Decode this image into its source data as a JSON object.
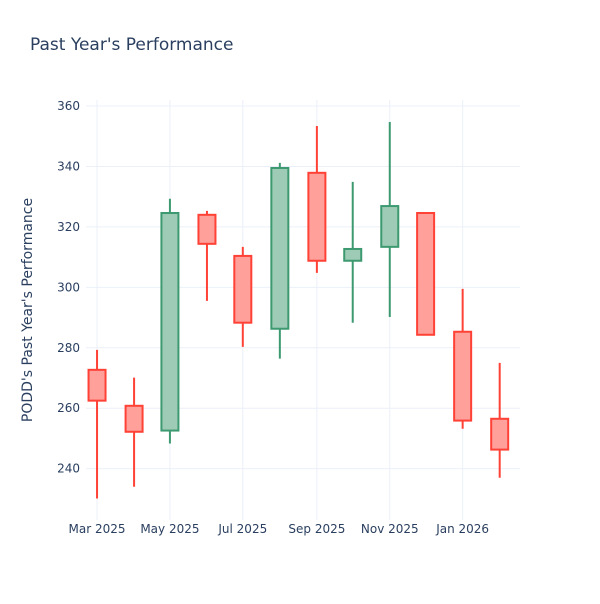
{
  "chart_data": {
    "type": "candlestick",
    "title": "Past Year's Performance",
    "xlabel": "",
    "ylabel": "PODD's Past Year's Performance",
    "ylim": [
      223,
      362
    ],
    "xlim": [
      "2025-01-29",
      "2026-02-18"
    ],
    "grid": true,
    "legend": "none",
    "y_ticks": [
      240,
      260,
      280,
      300,
      320,
      340,
      360
    ],
    "x_ticks": [
      {
        "date": "2025-03-01",
        "label": "Mar 2025"
      },
      {
        "date": "2025-05-01",
        "label": "May 2025"
      },
      {
        "date": "2025-07-01",
        "label": "Jul 2025"
      },
      {
        "date": "2025-09-01",
        "label": "Sep 2025"
      },
      {
        "date": "2025-11-01",
        "label": "Nov 2025"
      },
      {
        "date": "2026-01-01",
        "label": "Jan 2026"
      }
    ],
    "colors": {
      "increasing": "#3d9970",
      "increasing_fill": "#9ecbb5",
      "decreasing": "#ff4136",
      "decreasing_fill": "#ffa09b"
    },
    "candles": [
      {
        "date": "2025-03-01",
        "open": 272.7,
        "high": 279.3,
        "low": 230.1,
        "close": 262.5
      },
      {
        "date": "2025-04-01",
        "open": 260.8,
        "high": 270.1,
        "low": 234.0,
        "close": 252.2
      },
      {
        "date": "2025-05-01",
        "open": 252.6,
        "high": 329.3,
        "low": 248.3,
        "close": 324.6
      },
      {
        "date": "2025-06-01",
        "open": 324.0,
        "high": 325.3,
        "low": 295.5,
        "close": 314.4
      },
      {
        "date": "2025-07-01",
        "open": 310.4,
        "high": 313.4,
        "low": 280.3,
        "close": 288.3
      },
      {
        "date": "2025-08-01",
        "open": 286.3,
        "high": 341.2,
        "low": 276.4,
        "close": 339.5
      },
      {
        "date": "2025-09-01",
        "open": 337.9,
        "high": 353.4,
        "low": 304.8,
        "close": 308.8
      },
      {
        "date": "2025-10-01",
        "open": 308.8,
        "high": 334.9,
        "low": 288.3,
        "close": 312.7
      },
      {
        "date": "2025-11-01",
        "open": 313.4,
        "high": 354.7,
        "low": 290.2,
        "close": 326.9
      },
      {
        "date": "2025-12-01",
        "open": 324.6,
        "high": 324.6,
        "low": 284.3,
        "close": 284.3
      },
      {
        "date": "2026-01-01",
        "open": 285.3,
        "high": 299.5,
        "low": 253.2,
        "close": 255.9
      },
      {
        "date": "2026-02-01",
        "open": 256.5,
        "high": 275.0,
        "low": 237.0,
        "close": 246.3
      }
    ]
  }
}
